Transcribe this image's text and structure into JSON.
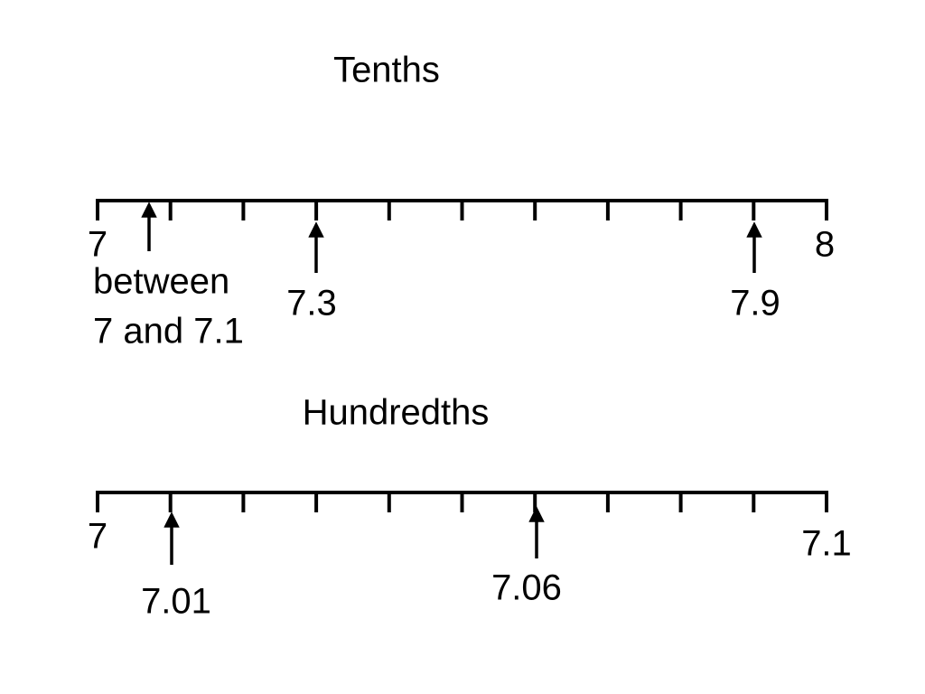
{
  "tenths": {
    "title": "Tenths",
    "start": "7",
    "end": "8",
    "markers": [
      {
        "lines": [
          "between",
          "7 and 7.1"
        ]
      },
      {
        "lines": [
          "7.3"
        ]
      },
      {
        "lines": [
          "7.9"
        ]
      }
    ]
  },
  "hundredths": {
    "title": "Hundredths",
    "start": "7",
    "end": "7.1",
    "markers": [
      {
        "lines": [
          "7.01"
        ]
      },
      {
        "lines": [
          "7.06"
        ]
      }
    ]
  }
}
